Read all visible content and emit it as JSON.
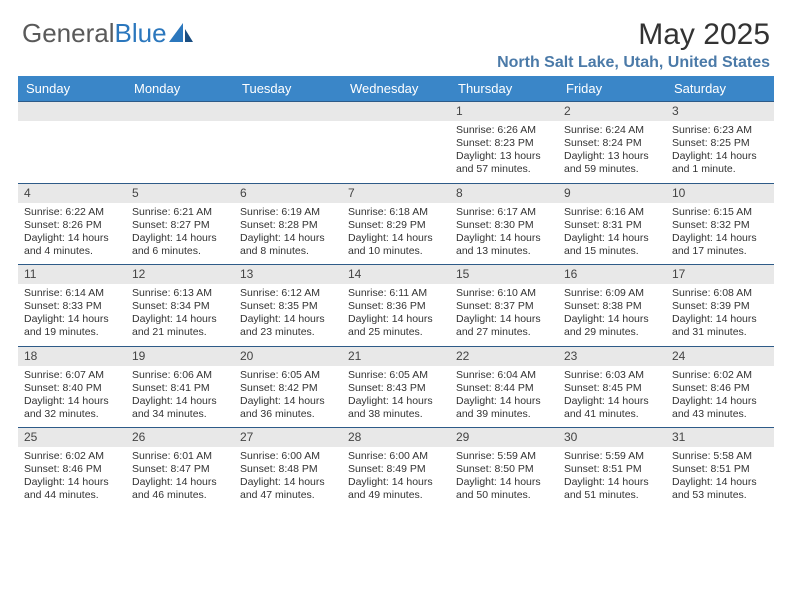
{
  "logo": {
    "text_a": "General",
    "text_b": "Blue"
  },
  "title": "May 2025",
  "location": "North Salt Lake, Utah, United States",
  "colors": {
    "header_bg": "#3a86c8",
    "header_text": "#ffffff",
    "daynum_bg": "#e8e8e8",
    "row_border": "#2e5b88",
    "location_color": "#4b7aa8",
    "logo_gray": "#5a5a5a",
    "logo_blue": "#2b77bd"
  },
  "typography": {
    "title_fontsize": 30,
    "location_fontsize": 16,
    "header_fontsize": 13,
    "cell_fontsize": 10.5
  },
  "day_headers": [
    "Sunday",
    "Monday",
    "Tuesday",
    "Wednesday",
    "Thursday",
    "Friday",
    "Saturday"
  ],
  "weeks": [
    [
      {
        "n": "",
        "sr": "",
        "ss": "",
        "dl": ""
      },
      {
        "n": "",
        "sr": "",
        "ss": "",
        "dl": ""
      },
      {
        "n": "",
        "sr": "",
        "ss": "",
        "dl": ""
      },
      {
        "n": "",
        "sr": "",
        "ss": "",
        "dl": ""
      },
      {
        "n": "1",
        "sr": "Sunrise: 6:26 AM",
        "ss": "Sunset: 8:23 PM",
        "dl": "Daylight: 13 hours and 57 minutes."
      },
      {
        "n": "2",
        "sr": "Sunrise: 6:24 AM",
        "ss": "Sunset: 8:24 PM",
        "dl": "Daylight: 13 hours and 59 minutes."
      },
      {
        "n": "3",
        "sr": "Sunrise: 6:23 AM",
        "ss": "Sunset: 8:25 PM",
        "dl": "Daylight: 14 hours and 1 minute."
      }
    ],
    [
      {
        "n": "4",
        "sr": "Sunrise: 6:22 AM",
        "ss": "Sunset: 8:26 PM",
        "dl": "Daylight: 14 hours and 4 minutes."
      },
      {
        "n": "5",
        "sr": "Sunrise: 6:21 AM",
        "ss": "Sunset: 8:27 PM",
        "dl": "Daylight: 14 hours and 6 minutes."
      },
      {
        "n": "6",
        "sr": "Sunrise: 6:19 AM",
        "ss": "Sunset: 8:28 PM",
        "dl": "Daylight: 14 hours and 8 minutes."
      },
      {
        "n": "7",
        "sr": "Sunrise: 6:18 AM",
        "ss": "Sunset: 8:29 PM",
        "dl": "Daylight: 14 hours and 10 minutes."
      },
      {
        "n": "8",
        "sr": "Sunrise: 6:17 AM",
        "ss": "Sunset: 8:30 PM",
        "dl": "Daylight: 14 hours and 13 minutes."
      },
      {
        "n": "9",
        "sr": "Sunrise: 6:16 AM",
        "ss": "Sunset: 8:31 PM",
        "dl": "Daylight: 14 hours and 15 minutes."
      },
      {
        "n": "10",
        "sr": "Sunrise: 6:15 AM",
        "ss": "Sunset: 8:32 PM",
        "dl": "Daylight: 14 hours and 17 minutes."
      }
    ],
    [
      {
        "n": "11",
        "sr": "Sunrise: 6:14 AM",
        "ss": "Sunset: 8:33 PM",
        "dl": "Daylight: 14 hours and 19 minutes."
      },
      {
        "n": "12",
        "sr": "Sunrise: 6:13 AM",
        "ss": "Sunset: 8:34 PM",
        "dl": "Daylight: 14 hours and 21 minutes."
      },
      {
        "n": "13",
        "sr": "Sunrise: 6:12 AM",
        "ss": "Sunset: 8:35 PM",
        "dl": "Daylight: 14 hours and 23 minutes."
      },
      {
        "n": "14",
        "sr": "Sunrise: 6:11 AM",
        "ss": "Sunset: 8:36 PM",
        "dl": "Daylight: 14 hours and 25 minutes."
      },
      {
        "n": "15",
        "sr": "Sunrise: 6:10 AM",
        "ss": "Sunset: 8:37 PM",
        "dl": "Daylight: 14 hours and 27 minutes."
      },
      {
        "n": "16",
        "sr": "Sunrise: 6:09 AM",
        "ss": "Sunset: 8:38 PM",
        "dl": "Daylight: 14 hours and 29 minutes."
      },
      {
        "n": "17",
        "sr": "Sunrise: 6:08 AM",
        "ss": "Sunset: 8:39 PM",
        "dl": "Daylight: 14 hours and 31 minutes."
      }
    ],
    [
      {
        "n": "18",
        "sr": "Sunrise: 6:07 AM",
        "ss": "Sunset: 8:40 PM",
        "dl": "Daylight: 14 hours and 32 minutes."
      },
      {
        "n": "19",
        "sr": "Sunrise: 6:06 AM",
        "ss": "Sunset: 8:41 PM",
        "dl": "Daylight: 14 hours and 34 minutes."
      },
      {
        "n": "20",
        "sr": "Sunrise: 6:05 AM",
        "ss": "Sunset: 8:42 PM",
        "dl": "Daylight: 14 hours and 36 minutes."
      },
      {
        "n": "21",
        "sr": "Sunrise: 6:05 AM",
        "ss": "Sunset: 8:43 PM",
        "dl": "Daylight: 14 hours and 38 minutes."
      },
      {
        "n": "22",
        "sr": "Sunrise: 6:04 AM",
        "ss": "Sunset: 8:44 PM",
        "dl": "Daylight: 14 hours and 39 minutes."
      },
      {
        "n": "23",
        "sr": "Sunrise: 6:03 AM",
        "ss": "Sunset: 8:45 PM",
        "dl": "Daylight: 14 hours and 41 minutes."
      },
      {
        "n": "24",
        "sr": "Sunrise: 6:02 AM",
        "ss": "Sunset: 8:46 PM",
        "dl": "Daylight: 14 hours and 43 minutes."
      }
    ],
    [
      {
        "n": "25",
        "sr": "Sunrise: 6:02 AM",
        "ss": "Sunset: 8:46 PM",
        "dl": "Daylight: 14 hours and 44 minutes."
      },
      {
        "n": "26",
        "sr": "Sunrise: 6:01 AM",
        "ss": "Sunset: 8:47 PM",
        "dl": "Daylight: 14 hours and 46 minutes."
      },
      {
        "n": "27",
        "sr": "Sunrise: 6:00 AM",
        "ss": "Sunset: 8:48 PM",
        "dl": "Daylight: 14 hours and 47 minutes."
      },
      {
        "n": "28",
        "sr": "Sunrise: 6:00 AM",
        "ss": "Sunset: 8:49 PM",
        "dl": "Daylight: 14 hours and 49 minutes."
      },
      {
        "n": "29",
        "sr": "Sunrise: 5:59 AM",
        "ss": "Sunset: 8:50 PM",
        "dl": "Daylight: 14 hours and 50 minutes."
      },
      {
        "n": "30",
        "sr": "Sunrise: 5:59 AM",
        "ss": "Sunset: 8:51 PM",
        "dl": "Daylight: 14 hours and 51 minutes."
      },
      {
        "n": "31",
        "sr": "Sunrise: 5:58 AM",
        "ss": "Sunset: 8:51 PM",
        "dl": "Daylight: 14 hours and 53 minutes."
      }
    ]
  ]
}
